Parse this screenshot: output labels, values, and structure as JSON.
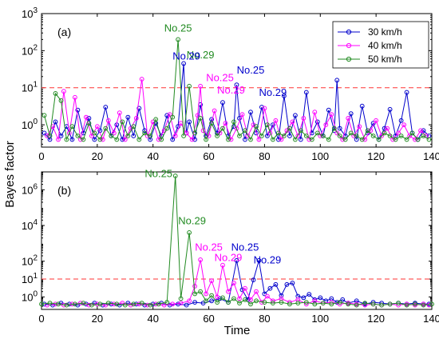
{
  "figure": {
    "ylabel": "Bayes factor",
    "xlabel": "Time"
  },
  "chart_data": [
    {
      "type": "line",
      "panel_label": "(a)",
      "xlim": [
        0,
        140
      ],
      "ylim": [
        0.25,
        1000
      ],
      "yscale": "log",
      "x_ticks": [
        "0",
        "20",
        "40",
        "60",
        "80",
        "100",
        "120",
        "140"
      ],
      "y_ticks": [
        {
          "base": "10",
          "exp": "0",
          "value": 1
        },
        {
          "base": "10",
          "exp": "1",
          "value": 10
        },
        {
          "base": "10",
          "exp": "2",
          "value": 100
        },
        {
          "base": "10",
          "exp": "3",
          "value": 1000
        }
      ],
      "threshold": 10,
      "legend": {
        "position": "top-right"
      },
      "series": [
        {
          "name": "30 km/h",
          "color": "#0000cc",
          "x": [
            1,
            3,
            5,
            7,
            9,
            11,
            13,
            15,
            17,
            19,
            21,
            23,
            25,
            27,
            29,
            31,
            33,
            35,
            37,
            39,
            41,
            43,
            45,
            47,
            49,
            51,
            52,
            53,
            55,
            57,
            59,
            61,
            63,
            65,
            67,
            69,
            70,
            71,
            73,
            75,
            77,
            79,
            81,
            83,
            85,
            87,
            89,
            91,
            93,
            95,
            97,
            99,
            101,
            103,
            105,
            106,
            107,
            109,
            111,
            113,
            115,
            117,
            119,
            121,
            123,
            125,
            127,
            129,
            131,
            133,
            135,
            137,
            139
          ],
          "values": [
            0.6,
            0.4,
            1.2,
            0.5,
            0.9,
            0.4,
            2.5,
            0.6,
            1.5,
            0.4,
            0.7,
            3.0,
            0.5,
            1.0,
            0.4,
            1.6,
            0.5,
            2.8,
            0.7,
            0.4,
            1.1,
            0.5,
            1.8,
            0.4,
            0.9,
            45,
            0.6,
            1.2,
            0.4,
            3.5,
            0.5,
            1.4,
            0.6,
            4.0,
            0.5,
            0.9,
            12,
            1.5,
            0.4,
            2.2,
            0.6,
            3.0,
            0.5,
            1.0,
            0.4,
            6.0,
            0.5,
            1.8,
            0.4,
            7.5,
            0.6,
            1.2,
            0.5,
            2.5,
            0.7,
            16,
            0.8,
            0.5,
            2.0,
            0.4,
            3.2,
            0.6,
            1.1,
            0.4,
            0.8,
            2.6,
            0.5,
            1.3,
            7.5,
            0.6,
            0.4,
            0.7,
            0.5
          ]
        },
        {
          "name": "40 km/h",
          "color": "#ff00ff",
          "x": [
            2,
            4,
            6,
            8,
            10,
            12,
            14,
            16,
            18,
            20,
            22,
            24,
            26,
            28,
            30,
            32,
            34,
            36,
            38,
            40,
            42,
            44,
            46,
            48,
            50,
            52,
            54,
            56,
            57,
            58,
            60,
            62,
            64,
            66,
            68,
            70,
            72,
            74,
            76,
            78,
            80,
            82,
            84,
            86,
            88,
            90,
            92,
            94,
            96,
            98,
            100,
            102,
            104,
            106,
            108,
            110,
            112,
            114,
            116,
            118,
            120,
            122,
            124,
            126,
            128,
            130,
            132,
            134,
            136,
            138
          ],
          "values": [
            0.5,
            0.9,
            0.4,
            8.0,
            0.6,
            5.5,
            0.4,
            1.6,
            0.5,
            0.9,
            0.4,
            1.3,
            0.6,
            2.1,
            0.4,
            0.8,
            1.5,
            17,
            0.5,
            1.2,
            0.4,
            0.7,
            1.9,
            0.5,
            1.1,
            0.6,
            0.4,
            1.8,
            11,
            0.7,
            0.5,
            2.4,
            0.6,
            1.1,
            0.4,
            0.8,
            1.9,
            0.5,
            1.0,
            0.4,
            2.8,
            0.6,
            1.3,
            0.4,
            0.7,
            1.2,
            0.5,
            1.5,
            0.4,
            2.2,
            0.5,
            1.0,
            1.9,
            0.6,
            0.4,
            1.5,
            0.5,
            0.9,
            0.4,
            0.7,
            1.3,
            0.5,
            0.8,
            0.4,
            0.6,
            1.0,
            0.5,
            0.4,
            0.7,
            0.5
          ]
        },
        {
          "name": "50 km/h",
          "color": "#228b22",
          "x": [
            1,
            3,
            5,
            7,
            9,
            11,
            13,
            15,
            17,
            19,
            21,
            23,
            25,
            27,
            29,
            31,
            33,
            35,
            37,
            39,
            41,
            43,
            45,
            47,
            49,
            51,
            53,
            55,
            57,
            59,
            61,
            63,
            65,
            67,
            69,
            71,
            73,
            75,
            77,
            79,
            81,
            83,
            85,
            87,
            89,
            91,
            93,
            95,
            97,
            99,
            101,
            103,
            105,
            107,
            109,
            111,
            113,
            115,
            117,
            119,
            121,
            123,
            125,
            127,
            129,
            131,
            133,
            135,
            137,
            139
          ],
          "values": [
            1.8,
            0.5,
            7.0,
            4.5,
            0.4,
            0.9,
            0.5,
            0.4,
            1.1,
            0.6,
            0.4,
            0.8,
            0.5,
            0.4,
            1.2,
            0.5,
            0.9,
            0.4,
            0.6,
            0.5,
            1.4,
            0.4,
            0.8,
            1.6,
            200,
            0.5,
            11,
            0.6,
            1.5,
            0.4,
            1.1,
            0.5,
            0.8,
            0.4,
            1.2,
            0.5,
            0.7,
            0.4,
            0.9,
            0.5,
            1.0,
            0.4,
            0.6,
            0.5,
            0.8,
            0.4,
            0.7,
            0.5,
            0.4,
            0.6,
            0.5,
            0.4,
            0.8,
            0.5,
            0.4,
            0.6,
            0.5,
            0.4,
            0.7,
            0.5,
            0.4,
            0.6,
            0.5,
            0.4,
            0.5,
            0.4,
            0.6,
            0.4,
            0.5,
            0.4
          ]
        }
      ],
      "annotations": [
        {
          "text": "No.25",
          "color": "#228b22",
          "x": 49,
          "y": 330
        },
        {
          "text": "No.29",
          "color": "#228b22",
          "x": 57,
          "y": 62
        },
        {
          "text": "No.29",
          "color": "#0000cc",
          "x": 52,
          "y": 58
        },
        {
          "text": "No.25",
          "color": "#0000cc",
          "x": 75,
          "y": 24
        },
        {
          "text": "No.25",
          "color": "#ff00ff",
          "x": 64,
          "y": 15
        },
        {
          "text": "No.29",
          "color": "#ff00ff",
          "x": 68,
          "y": 7
        },
        {
          "text": "No.29",
          "color": "#0000cc",
          "x": 83,
          "y": 6
        }
      ]
    },
    {
      "type": "line",
      "panel_label": "(b)",
      "xlim": [
        0,
        140
      ],
      "ylim": [
        0.2,
        10000000
      ],
      "yscale": "log",
      "x_ticks": [
        "0",
        "20",
        "40",
        "60",
        "80",
        "100",
        "120",
        "140"
      ],
      "y_ticks": [
        {
          "base": "10",
          "exp": "0",
          "value": 1
        },
        {
          "base": "10",
          "exp": "1",
          "value": 10
        },
        {
          "base": "10",
          "exp": "2",
          "value": 100
        },
        {
          "base": "10",
          "exp": "4",
          "value": 10000
        },
        {
          "base": "10",
          "exp": "6",
          "value": 1000000
        }
      ],
      "threshold": 10,
      "series": [
        {
          "name": "30 km/h",
          "color": "#0000cc",
          "x": [
            1,
            4,
            7,
            10,
            13,
            16,
            19,
            22,
            25,
            28,
            31,
            34,
            37,
            40,
            43,
            46,
            49,
            52,
            55,
            58,
            61,
            64,
            67,
            70,
            72,
            74,
            76,
            78,
            80,
            82,
            84,
            86,
            88,
            90,
            92,
            94,
            96,
            98,
            100,
            102,
            104,
            106,
            108,
            110,
            113,
            116,
            119,
            122,
            125,
            128,
            131,
            134,
            137,
            139
          ],
          "values": [
            0.4,
            0.35,
            0.45,
            0.4,
            0.35,
            0.4,
            0.45,
            0.35,
            0.4,
            0.35,
            0.45,
            0.4,
            0.35,
            0.4,
            0.45,
            0.35,
            0.4,
            0.35,
            0.5,
            0.45,
            0.6,
            0.8,
            0.5,
            110,
            2.5,
            0.7,
            9,
            110,
            1.5,
            3,
            5,
            1.2,
            5,
            6,
            1.1,
            0.9,
            1.4,
            0.7,
            0.9,
            0.6,
            0.8,
            0.5,
            0.7,
            0.45,
            0.6,
            0.4,
            0.5,
            0.45,
            0.4,
            0.45,
            0.4,
            0.45,
            0.4,
            0.4
          ]
        },
        {
          "name": "40 km/h",
          "color": "#ff00ff",
          "x": [
            2,
            5,
            8,
            11,
            14,
            17,
            20,
            23,
            26,
            29,
            32,
            35,
            38,
            41,
            44,
            47,
            50,
            53,
            55,
            57,
            59,
            61,
            63,
            65,
            67,
            69,
            71,
            73,
            75,
            77,
            79,
            81,
            83,
            86,
            89,
            92,
            95,
            98,
            101,
            104,
            107,
            110,
            113,
            116,
            119,
            122,
            125,
            128,
            131,
            134,
            137,
            139
          ],
          "values": [
            0.35,
            0.4,
            0.35,
            0.4,
            0.45,
            0.35,
            0.4,
            0.35,
            0.4,
            0.45,
            0.35,
            0.4,
            0.35,
            0.4,
            0.35,
            0.4,
            0.45,
            0.6,
            4,
            120,
            1.5,
            8,
            1,
            60,
            2,
            6,
            0.8,
            3,
            0.7,
            2,
            0.5,
            1.1,
            0.6,
            0.8,
            0.5,
            0.7,
            0.4,
            0.6,
            0.45,
            0.5,
            0.4,
            0.45,
            0.4,
            0.35,
            0.4,
            0.35,
            0.4,
            0.35,
            0.4,
            0.35,
            0.4,
            0.35
          ]
        },
        {
          "name": "50 km/h",
          "color": "#228b22",
          "x": [
            0,
            3,
            6,
            9,
            12,
            15,
            18,
            21,
            24,
            27,
            30,
            33,
            36,
            39,
            42,
            45,
            48,
            50,
            53,
            55,
            57,
            59,
            61,
            63,
            65,
            67,
            69,
            71,
            73,
            75,
            77,
            80,
            83,
            86,
            89,
            92,
            95,
            98,
            101,
            104,
            107,
            110,
            113,
            116,
            119,
            122,
            125,
            128,
            131,
            134,
            137,
            140
          ],
          "values": [
            0.4,
            0.45,
            0.4,
            0.35,
            0.4,
            0.45,
            0.35,
            0.4,
            0.45,
            0.4,
            0.35,
            0.4,
            0.45,
            0.35,
            0.4,
            0.5,
            6000000,
            0.8,
            4000,
            1.5,
            2,
            0.6,
            1.2,
            0.5,
            0.9,
            0.5,
            0.8,
            0.45,
            0.7,
            0.4,
            0.6,
            0.5,
            0.45,
            0.5,
            0.4,
            0.45,
            0.5,
            0.4,
            0.45,
            0.4,
            0.5,
            0.4,
            0.35,
            0.45,
            0.4,
            0.35,
            0.4,
            0.45,
            0.35,
            0.4,
            0.35,
            0.4
          ]
        }
      ],
      "annotations": [
        {
          "text": "No.25",
          "color": "#228b22",
          "x": 42,
          "y": 5000000
        },
        {
          "text": "No.29",
          "color": "#228b22",
          "x": 54,
          "y": 12000
        },
        {
          "text": "No.25",
          "color": "#ff00ff",
          "x": 60,
          "y": 400
        },
        {
          "text": "No.25",
          "color": "#0000cc",
          "x": 73,
          "y": 400
        },
        {
          "text": "No.29",
          "color": "#ff00ff",
          "x": 67,
          "y": 100
        },
        {
          "text": "No.29",
          "color": "#0000cc",
          "x": 81,
          "y": 75
        }
      ]
    }
  ]
}
